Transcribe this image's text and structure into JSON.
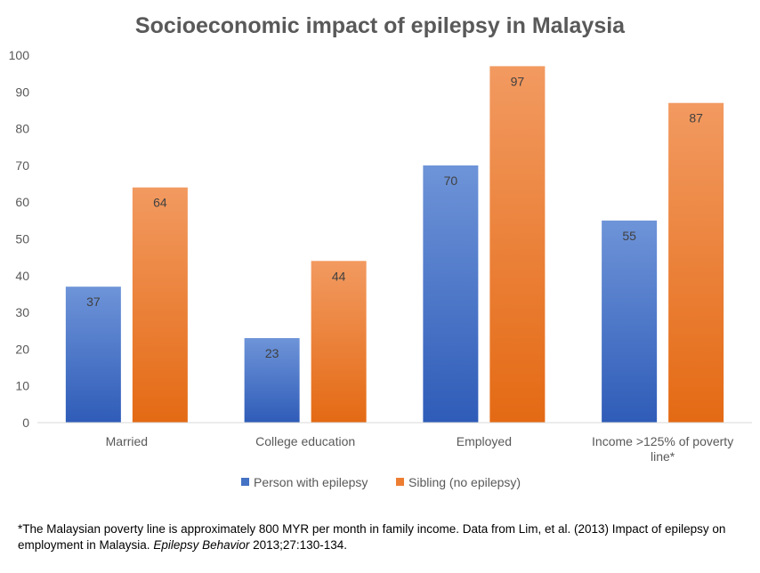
{
  "chart_data": {
    "type": "bar",
    "title": "Socioeconomic impact of epilepsy in Malaysia",
    "categories": [
      "Married",
      "College education",
      "Employed",
      "Income >125% of poverty line*"
    ],
    "series": [
      {
        "name": "Person with epilepsy",
        "values": [
          37,
          23,
          70,
          55
        ],
        "color": "#4472C4"
      },
      {
        "name": "Sibling (no epilepsy)",
        "values": [
          64,
          44,
          97,
          87
        ],
        "color": "#ED7D31"
      }
    ],
    "ylim": [
      0,
      100
    ],
    "yticks": [
      0,
      10,
      20,
      30,
      40,
      50,
      60,
      70,
      80,
      90,
      100
    ],
    "xlabel": "",
    "ylabel": "",
    "grid": false,
    "legend": "bottom"
  },
  "footnote": {
    "text_before": "*The Malaysian poverty line is approximately 800 MYR per month in family income. Data from Lim, et al. (2013)  Impact of epilepsy on employment in Malaysia. ",
    "journal": "Epilepsy Behavior",
    "text_after": " 2013;27:130-134."
  }
}
